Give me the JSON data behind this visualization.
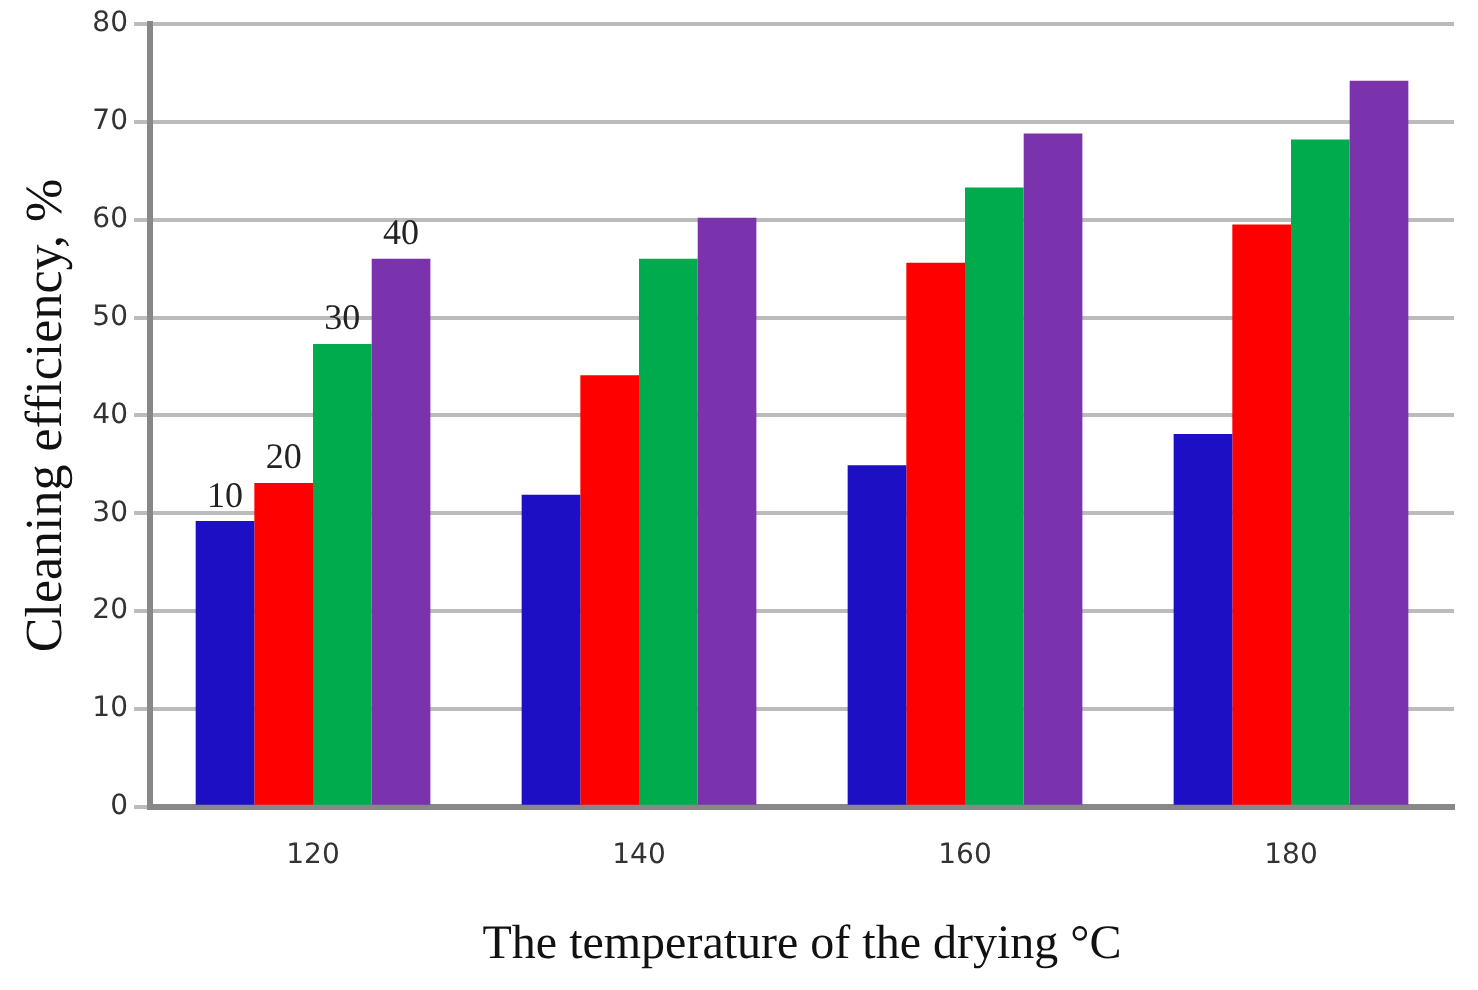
{
  "chart_data": {
    "type": "bar",
    "xlabel": "The temperature of the drying °C",
    "ylabel": "Cleaning efficiency, %",
    "categories": [
      "120",
      "140",
      "160",
      "180"
    ],
    "series": [
      {
        "name": "10",
        "color": "#1c0fc4",
        "values": [
          29.2,
          31.9,
          34.9,
          38.1
        ]
      },
      {
        "name": "20",
        "color": "#ff0000",
        "values": [
          33.1,
          44.1,
          55.6,
          59.5
        ]
      },
      {
        "name": "30",
        "color": "#00ab4e",
        "values": [
          47.3,
          56.0,
          63.3,
          68.2
        ]
      },
      {
        "name": "40",
        "color": "#7a33ac",
        "values": [
          56.0,
          60.2,
          68.8,
          74.2
        ]
      }
    ],
    "ylim": [
      0,
      80
    ],
    "yticks": [
      0,
      10,
      20,
      30,
      40,
      50,
      60,
      70,
      80
    ],
    "grid": "y",
    "legend": false
  }
}
